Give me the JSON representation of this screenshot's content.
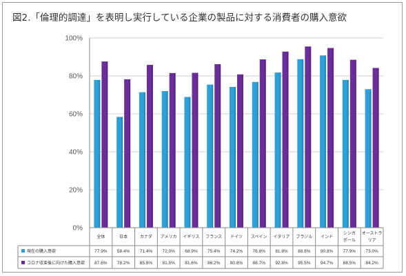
{
  "chart_data": {
    "type": "bar",
    "title": "図2.「倫理的調達」を表明し実行している企業の製品に対する消費者の購入意欲",
    "categories": [
      [
        "全体"
      ],
      [
        "日本"
      ],
      [
        "カナダ"
      ],
      [
        "アメリカ"
      ],
      [
        "イギリス"
      ],
      [
        "フランス"
      ],
      [
        "ドイツ"
      ],
      [
        "スペイン"
      ],
      [
        "イタリア"
      ],
      [
        "ブラジル"
      ],
      [
        "インド"
      ],
      [
        "シンガ",
        "ポール"
      ],
      [
        "オーストラ",
        "リア"
      ]
    ],
    "yticks": [
      "0%",
      "20%",
      "40%",
      "60%",
      "80%",
      "100%"
    ],
    "ylim": [
      0,
      100
    ],
    "grid": true,
    "legend_position": "data-table",
    "series": [
      {
        "name": "現在の購入意欲",
        "color": "#2ea0d8",
        "values": [
          77.9,
          58.4,
          71.4,
          72.0,
          68.9,
          75.4,
          74.2,
          76.8,
          81.8,
          88.8,
          90.8,
          77.9,
          73.0
        ],
        "labels": [
          "77.9%",
          "58.4%",
          "71.4%",
          "72.0%",
          "68.9%",
          "75.4%",
          "74.2%",
          "76.8%",
          "81.8%",
          "88.8%",
          "90.8%",
          "77.9%",
          "73.0%"
        ]
      },
      {
        "name": "コロナ収束後に向けた購入意欲",
        "color": "#6a2d99",
        "values": [
          87.6,
          78.2,
          85.8,
          81.5,
          81.6,
          86.2,
          80.8,
          88.7,
          92.8,
          95.5,
          94.7,
          88.5,
          84.2
        ],
        "labels": [
          "87.6%",
          "78.2%",
          "85.8%",
          "81.5%",
          "81.6%",
          "86.2%",
          "80.8%",
          "88.7%",
          "92.8%",
          "95.5%",
          "94.7%",
          "88.5%",
          "84.2%"
        ]
      }
    ]
  }
}
